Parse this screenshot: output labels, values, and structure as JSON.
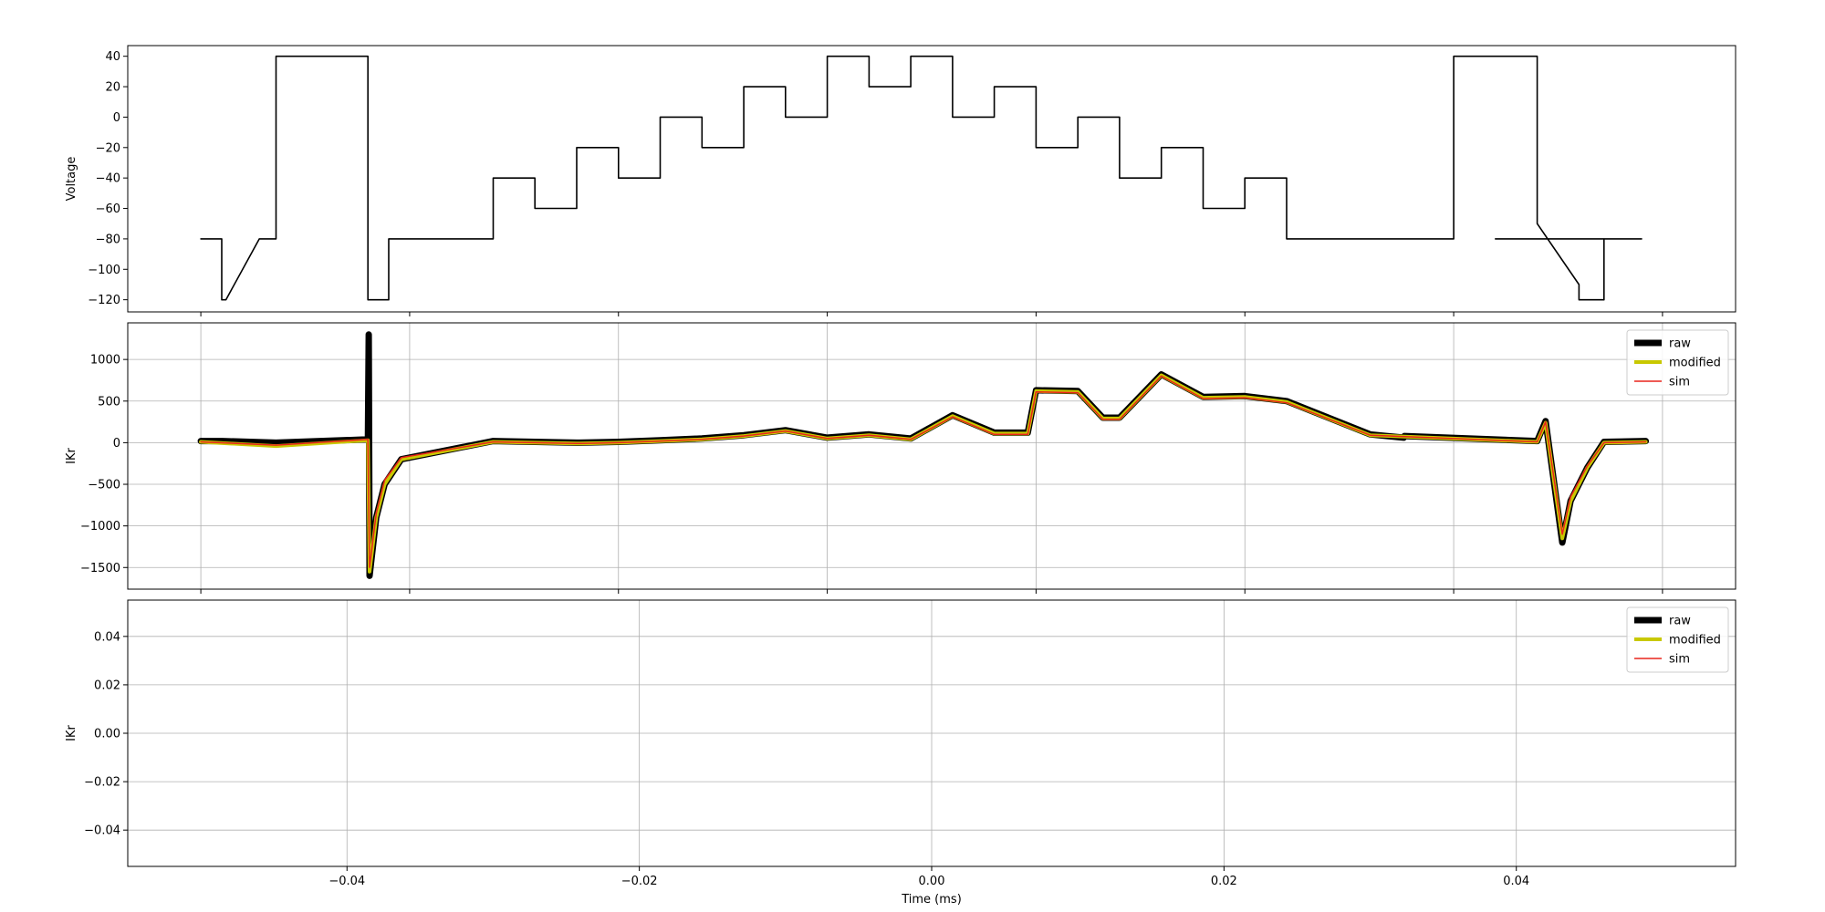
{
  "chart_data": [
    {
      "type": "line",
      "ylabel": "Voltage",
      "xlabel": "",
      "ylim": [
        -128,
        47
      ],
      "yticks": [
        40,
        20,
        0,
        -20,
        -40,
        -60,
        -80,
        -100,
        -120
      ],
      "ytick_labels": [
        "40",
        "20",
        "0",
        "−20",
        "−40",
        "−60",
        "−80",
        "−100",
        "−120"
      ],
      "grid": false,
      "series": [
        {
          "color": "#000000",
          "x": [
            0,
            250,
            250,
            300,
            700,
            900,
            900,
            1000,
            1000,
            2000,
            2000,
            2250,
            2250,
            3500,
            3500,
            4000,
            4000,
            4500,
            4500,
            5000,
            5000,
            5500,
            5500,
            6000,
            6000,
            6500,
            6500,
            7000,
            7000,
            7500,
            7500,
            8000,
            8000,
            8500,
            8500,
            9000,
            9000,
            9500,
            9500,
            10000,
            10000,
            10500,
            10500,
            11000,
            11000,
            11500,
            11500,
            12000,
            12000,
            12500,
            12500,
            13000,
            13000,
            13500,
            13500,
            14000,
            14000,
            14500,
            14500,
            15000,
            15000,
            16000,
            16000,
            16500,
            16500,
            16800,
            16800,
            17250,
            17250,
            15500
          ],
          "y": [
            -80,
            -80,
            -120,
            -120,
            -80,
            -80,
            40,
            40,
            40,
            40,
            -120,
            -120,
            -80,
            -80,
            -40,
            -40,
            -60,
            -60,
            -20,
            -20,
            -40,
            -40,
            0,
            0,
            -20,
            -20,
            20,
            20,
            0,
            0,
            40,
            40,
            20,
            20,
            40,
            40,
            0,
            0,
            20,
            20,
            -20,
            -20,
            0,
            0,
            -40,
            -40,
            -20,
            -20,
            -60,
            -60,
            -40,
            -40,
            -80,
            -80,
            -80,
            -80,
            -80,
            -80,
            -80,
            -80,
            40,
            40,
            -70,
            -110,
            -120,
            -120,
            -80,
            -80,
            -80,
            -80
          ]
        }
      ]
    },
    {
      "type": "line",
      "ylabel": "IKr",
      "xlabel": "",
      "ylim": [
        -1760,
        1440
      ],
      "yticks": [
        1000,
        500,
        0,
        -500,
        -1000,
        -1500
      ],
      "ytick_labels": [
        "1000",
        "500",
        "0",
        "−500",
        "−1000",
        "−1500"
      ],
      "grid": true,
      "legend_placement": "top-right",
      "series": [
        {
          "name": "raw",
          "color": "#000000",
          "x": [
            0,
            240,
            260,
            900,
            2000,
            2010,
            2020,
            2100,
            2200,
            2400,
            3500,
            4000,
            4500,
            5000,
            5500,
            6000,
            6500,
            7000,
            7500,
            8000,
            8500,
            9000,
            9500,
            9900,
            10000,
            10500,
            10800,
            11000,
            11500,
            12000,
            12500,
            13000,
            14000,
            14400,
            14410,
            16000,
            16100,
            16300,
            16400,
            16600,
            16800,
            17300
          ],
          "y": [
            20,
            20,
            20,
            0,
            40,
            1300,
            -1600,
            -900,
            -500,
            -200,
            20,
            10,
            0,
            10,
            30,
            50,
            90,
            150,
            60,
            100,
            50,
            330,
            120,
            120,
            630,
            620,
            300,
            300,
            820,
            550,
            560,
            500,
            100,
            60,
            80,
            20,
            260,
            -1200,
            -700,
            -300,
            10,
            20
          ]
        },
        {
          "name": "modified",
          "color": "#c8c800",
          "x": [
            0,
            900,
            2000,
            2020,
            2100,
            2200,
            2400,
            3500,
            4000,
            4500,
            5000,
            5500,
            6000,
            6500,
            7000,
            7500,
            8000,
            8500,
            9000,
            9500,
            9900,
            10000,
            10500,
            10800,
            11000,
            11500,
            12000,
            12500,
            13000,
            14000,
            16000,
            16100,
            16300,
            16400,
            16600,
            16800,
            17300
          ],
          "y": [
            10,
            -40,
            30,
            -1550,
            -900,
            -500,
            -200,
            10,
            0,
            -10,
            0,
            20,
            40,
            80,
            140,
            50,
            90,
            40,
            320,
            110,
            110,
            620,
            610,
            290,
            290,
            810,
            540,
            550,
            490,
            90,
            10,
            240,
            -1150,
            -700,
            -300,
            0,
            10
          ]
        },
        {
          "name": "sim",
          "color": "#e8251c",
          "x": [
            0,
            900,
            2000,
            2020,
            2100,
            2200,
            2400,
            3500,
            4000,
            4500,
            5000,
            5500,
            6000,
            6500,
            7000,
            7500,
            8000,
            8500,
            9000,
            9500,
            9900,
            10000,
            10500,
            10800,
            11000,
            11500,
            12000,
            12500,
            13000,
            14000,
            16000,
            16100,
            16300,
            16400,
            16600,
            16800,
            17300
          ],
          "y": [
            10,
            -30,
            40,
            -1500,
            -850,
            -450,
            -180,
            10,
            0,
            -10,
            0,
            20,
            40,
            80,
            140,
            50,
            90,
            40,
            310,
            100,
            100,
            610,
            600,
            280,
            280,
            800,
            530,
            540,
            480,
            90,
            10,
            250,
            -1100,
            -650,
            -280,
            0,
            10
          ]
        }
      ]
    },
    {
      "type": "line",
      "ylabel": "IKr",
      "xlabel": "Time (ms)",
      "xlim": [
        -0.055,
        0.055
      ],
      "ylim": [
        -0.055,
        0.055
      ],
      "xticks": [
        -0.04,
        -0.02,
        0.0,
        0.02,
        0.04
      ],
      "xtick_labels": [
        "−0.04",
        "−0.02",
        "0.00",
        "0.02",
        "0.04"
      ],
      "yticks": [
        0.04,
        0.02,
        0.0,
        -0.02,
        -0.04
      ],
      "ytick_labels": [
        "0.04",
        "0.02",
        "0.00",
        "−0.02",
        "−0.04"
      ],
      "grid": true,
      "legend_placement": "top-right",
      "series": [
        {
          "name": "raw",
          "color": "#000000",
          "x": [],
          "y": []
        },
        {
          "name": "modified",
          "color": "#c8c800",
          "x": [],
          "y": []
        },
        {
          "name": "sim",
          "color": "#e8251c",
          "x": [],
          "y": []
        }
      ]
    }
  ]
}
